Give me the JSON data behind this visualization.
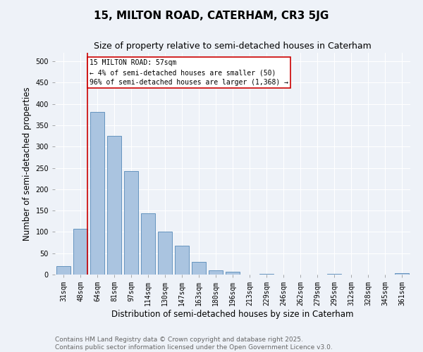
{
  "title": "15, MILTON ROAD, CATERHAM, CR3 5JG",
  "subtitle": "Size of property relative to semi-detached houses in Caterham",
  "xlabel": "Distribution of semi-detached houses by size in Caterham",
  "ylabel": "Number of semi-detached properties",
  "categories": [
    "31sqm",
    "48sqm",
    "64sqm",
    "81sqm",
    "97sqm",
    "114sqm",
    "130sqm",
    "147sqm",
    "163sqm",
    "180sqm",
    "196sqm",
    "213sqm",
    "229sqm",
    "246sqm",
    "262sqm",
    "279sqm",
    "295sqm",
    "312sqm",
    "328sqm",
    "345sqm",
    "361sqm"
  ],
  "values": [
    20,
    107,
    382,
    325,
    242,
    143,
    101,
    68,
    30,
    10,
    6,
    0,
    2,
    0,
    0,
    0,
    1,
    0,
    0,
    0,
    3
  ],
  "bar_color": "#aac4e0",
  "bar_edge_color": "#5589b8",
  "property_line_x": 1.425,
  "annotation_text": "15 MILTON ROAD: 57sqm\n← 4% of semi-detached houses are smaller (50)\n96% of semi-detached houses are larger (1,368) →",
  "annotation_box_color": "#ffffff",
  "annotation_border_color": "#cc0000",
  "vline_color": "#cc0000",
  "ylim": [
    0,
    520
  ],
  "yticks": [
    0,
    50,
    100,
    150,
    200,
    250,
    300,
    350,
    400,
    450,
    500
  ],
  "footer_line1": "Contains HM Land Registry data © Crown copyright and database right 2025.",
  "footer_line2": "Contains public sector information licensed under the Open Government Licence v3.0.",
  "bg_color": "#eef2f8",
  "plot_bg_color": "#eef2f8",
  "grid_color": "#ffffff",
  "title_fontsize": 11,
  "subtitle_fontsize": 9,
  "axis_label_fontsize": 8.5,
  "tick_fontsize": 7,
  "footer_fontsize": 6.5,
  "annotation_fontsize": 7
}
